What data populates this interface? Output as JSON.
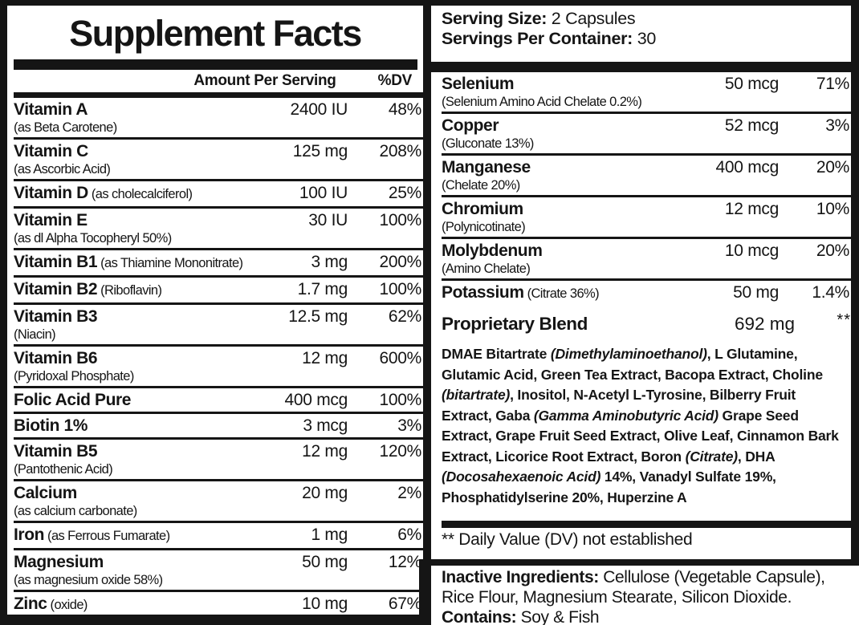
{
  "label": {
    "title": "Supplement Facts",
    "serving_size_label": "Serving Size:",
    "serving_size_value": " 2 Capsules",
    "servings_per_container_label": "Servings Per Container:",
    "servings_per_container_value": " 30"
  },
  "columns": {
    "amount_header": "Amount Per Serving",
    "dv_header": "%DV"
  },
  "left_rows": [
    {
      "name": "Vitamin A",
      "sub": "(as Beta Carotene)",
      "inline": false,
      "amount": "2400 IU",
      "dv": "48%"
    },
    {
      "name": "Vitamin C",
      "sub": "(as Ascorbic Acid)",
      "inline": false,
      "amount": "125 mg",
      "dv": "208%"
    },
    {
      "name": "Vitamin D",
      "sub": "(as cholecalciferol)",
      "inline": true,
      "amount": "100 IU",
      "dv": "25%"
    },
    {
      "name": "Vitamin E",
      "sub": "(as dl Alpha Tocopheryl 50%)",
      "inline": false,
      "amount": "30 IU",
      "dv": "100%"
    },
    {
      "name": "Vitamin B1",
      "sub": "(as Thiamine Mononitrate)",
      "inline": true,
      "amount": "3 mg",
      "dv": "200%"
    },
    {
      "name": "Vitamin B2",
      "sub": "(Riboflavin)",
      "inline": true,
      "amount": "1.7 mg",
      "dv": "100%"
    },
    {
      "name": "Vitamin B3",
      "sub": "(Niacin)",
      "inline": false,
      "amount": "12.5 mg",
      "dv": "62%"
    },
    {
      "name": "Vitamin B6",
      "sub": "(Pyridoxal Phosphate)",
      "inline": false,
      "amount": "12 mg",
      "dv": "600%"
    },
    {
      "name": "Folic Acid Pure",
      "sub": "",
      "inline": true,
      "amount": "400 mcg",
      "dv": "100%"
    },
    {
      "name": "Biotin 1%",
      "sub": "",
      "inline": true,
      "amount": "3 mcg",
      "dv": "3%"
    },
    {
      "name": "Vitamin B5",
      "sub": "(Pantothenic Acid)",
      "inline": false,
      "amount": "12 mg",
      "dv": "120%"
    },
    {
      "name": "Calcium",
      "sub": "(as calcium carbonate)",
      "inline": false,
      "amount": "20 mg",
      "dv": "2%"
    },
    {
      "name": "Iron",
      "sub": "(as Ferrous Fumarate)",
      "inline": true,
      "amount": "1 mg",
      "dv": "6%"
    },
    {
      "name": "Magnesium",
      "sub": "(as magnesium oxide 58%)",
      "inline": false,
      "amount": "50 mg",
      "dv": "12%"
    },
    {
      "name": "Zinc",
      "sub": "(oxide)",
      "inline": true,
      "amount": "10 mg",
      "dv": "67%"
    }
  ],
  "right_rows": [
    {
      "name": "Selenium",
      "sub": "(Selenium Amino Acid Chelate 0.2%)",
      "inline": false,
      "amount": "50 mcg",
      "dv": "71%"
    },
    {
      "name": "Copper",
      "sub": "(Gluconate 13%)",
      "inline": false,
      "amount": "52 mcg",
      "dv": "3%"
    },
    {
      "name": "Manganese",
      "sub": "(Chelate 20%)",
      "inline": false,
      "amount": "400 mcg",
      "dv": "20%"
    },
    {
      "name": "Chromium",
      "sub": "(Polynicotinate)",
      "inline": false,
      "amount": "12 mcg",
      "dv": "10%"
    },
    {
      "name": "Molybdenum",
      "sub": "(Amino Chelate)",
      "inline": false,
      "amount": "10 mcg",
      "dv": "20%"
    },
    {
      "name": "Potassium",
      "sub": "(Citrate 36%)",
      "inline": true,
      "amount": "50 mg",
      "dv": "1.4%"
    }
  ],
  "proprietary_blend": {
    "name": "Proprietary Blend",
    "amount": "692 mg",
    "dv": "**",
    "ingredients": [
      {
        "t": "DMAE Bitartrate ",
        "i": false
      },
      {
        "t": "(Dimethylaminoethanol)",
        "i": true
      },
      {
        "t": ", L Glutamine, Glutamic Acid, Green Tea Extract, Bacopa Extract, Choline ",
        "i": false
      },
      {
        "t": "(bitartrate)",
        "i": true
      },
      {
        "t": ", Inositol, N-Acetyl L-Tyrosine, Bilberry Fruit Extract, Gaba ",
        "i": false
      },
      {
        "t": "(Gamma Aminobutyric Acid)",
        "i": true
      },
      {
        "t": " Grape Seed Extract, Grape Fruit Seed Extract, Olive Leaf, Cinnamon Bark Extract, Licorice Root Extract, Boron ",
        "i": false
      },
      {
        "t": "(Citrate)",
        "i": true
      },
      {
        "t": ", DHA ",
        "i": false
      },
      {
        "t": "(Docosahexaenoic Acid)",
        "i": true
      },
      {
        "t": " 14%, Vanadyl Sulfate 19%, Phosphatidylserine 20%, Huperzine A",
        "i": false
      }
    ]
  },
  "footnote": "** Daily Value (DV) not established",
  "inactive": {
    "label": "Inactive Ingredients:",
    "text": " Cellulose (Vegetable Capsule), Rice Flour, Magnesium Stearate, Silicon Dioxide.",
    "contains_label": "Contains:",
    "contains_text": " Soy & Fish"
  },
  "colors": {
    "ink": "#151515",
    "background": "#ffffff"
  }
}
